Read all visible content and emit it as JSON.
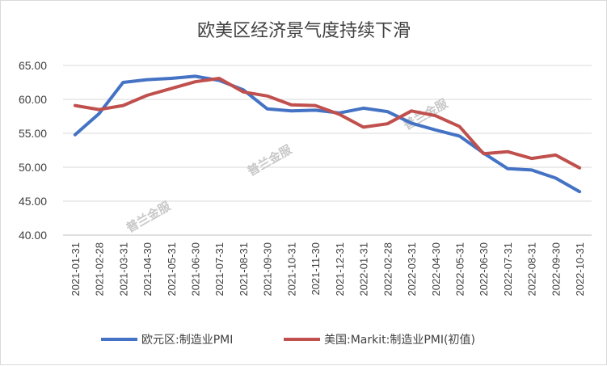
{
  "chart_data": {
    "type": "line",
    "title": "欧美区经济景气度持续下滑",
    "categories": [
      "2021-01-31",
      "2021-02-28",
      "2021-03-31",
      "2021-04-30",
      "2021-05-31",
      "2021-06-30",
      "2021-07-31",
      "2021-08-31",
      "2021-09-30",
      "2021-10-31",
      "2021-11-30",
      "2021-12-31",
      "2022-01-31",
      "2022-02-28",
      "2022-03-31",
      "2022-04-30",
      "2022-05-31",
      "2022-06-30",
      "2022-07-31",
      "2022-08-31",
      "2022-09-30",
      "2022-10-31"
    ],
    "y_tick_labels": [
      "40.00",
      "45.00",
      "50.00",
      "55.00",
      "60.00",
      "65.00"
    ],
    "ylim": [
      40,
      65
    ],
    "grid": true,
    "legend_position": "bottom",
    "series": [
      {
        "name": "欧元区:制造业PMI",
        "color": "#4472c4",
        "values": [
          54.8,
          57.9,
          62.5,
          62.9,
          63.1,
          63.4,
          62.8,
          61.4,
          58.6,
          58.3,
          58.4,
          58.0,
          58.7,
          58.2,
          56.5,
          55.5,
          54.6,
          52.1,
          49.8,
          49.6,
          48.4,
          46.4
        ]
      },
      {
        "name": "美国:Markit:制造业PMI(初值)",
        "color": "#c0504d",
        "values": [
          59.1,
          58.5,
          59.1,
          60.6,
          61.6,
          62.6,
          63.1,
          61.1,
          60.5,
          59.2,
          59.1,
          57.8,
          55.9,
          56.4,
          58.3,
          57.6,
          56.0,
          52.0,
          52.3,
          51.3,
          51.8,
          49.9
        ]
      }
    ]
  },
  "watermarks": [
    "普兰金服",
    "普兰金服",
    "普兰金服"
  ]
}
